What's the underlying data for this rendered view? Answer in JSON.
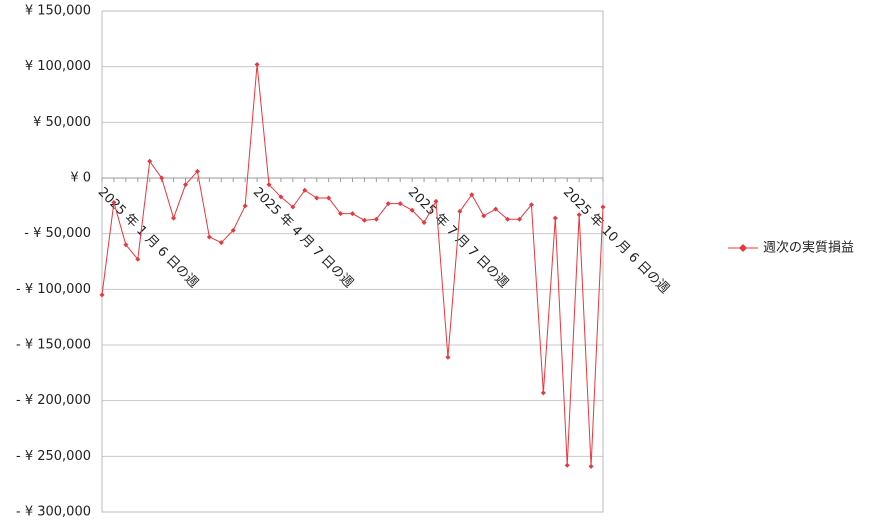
{
  "chart_data": {
    "type": "line",
    "categories": [
      "2025 年 1 月 6 日の週",
      null,
      null,
      null,
      null,
      null,
      null,
      null,
      null,
      null,
      null,
      null,
      null,
      "2025 年 4 月 7 日の週",
      null,
      null,
      null,
      null,
      null,
      null,
      null,
      null,
      null,
      null,
      null,
      null,
      "2025 年 7 月 7 日の週",
      null,
      null,
      null,
      null,
      null,
      null,
      null,
      null,
      null,
      null,
      null,
      null,
      "2025 年 10 月 6 日の週",
      null,
      null,
      null
    ],
    "series": [
      {
        "name": "週次の実質損益",
        "color": "#e8383d",
        "values": [
          -105000,
          -22000,
          -60000,
          -73000,
          15000,
          0,
          -36000,
          -6000,
          6000,
          -53000,
          -58000,
          -47000,
          -25000,
          102000,
          -6000,
          -17000,
          -26000,
          -11000,
          -18000,
          -18000,
          -32000,
          -32000,
          -38000,
          -37000,
          -23000,
          -23000,
          -29000,
          -40000,
          -21000,
          -161000,
          -30000,
          -15000,
          -34000,
          -28000,
          -37000,
          -37000,
          -24000,
          -193000,
          -36000,
          -258000,
          -33000,
          -259000,
          -26000
        ]
      }
    ],
    "ylim": [
      -300000,
      150000
    ],
    "yticks": [
      {
        "value": -300000,
        "label": "- ¥ 300,000"
      },
      {
        "value": -250000,
        "label": "- ¥ 250,000"
      },
      {
        "value": -200000,
        "label": "- ¥ 200,000"
      },
      {
        "value": -150000,
        "label": "- ¥ 150,000"
      },
      {
        "value": -100000,
        "label": "- ¥ 100,000"
      },
      {
        "value": -50000,
        "label": "- ¥ 50,000"
      },
      {
        "value": 0,
        "label": "¥ 0"
      },
      {
        "value": 50000,
        "label": "¥ 50,000"
      },
      {
        "value": 100000,
        "label": "¥ 100,000"
      },
      {
        "value": 150000,
        "label": "¥ 150,000"
      }
    ],
    "grid": true,
    "legend": "right"
  }
}
